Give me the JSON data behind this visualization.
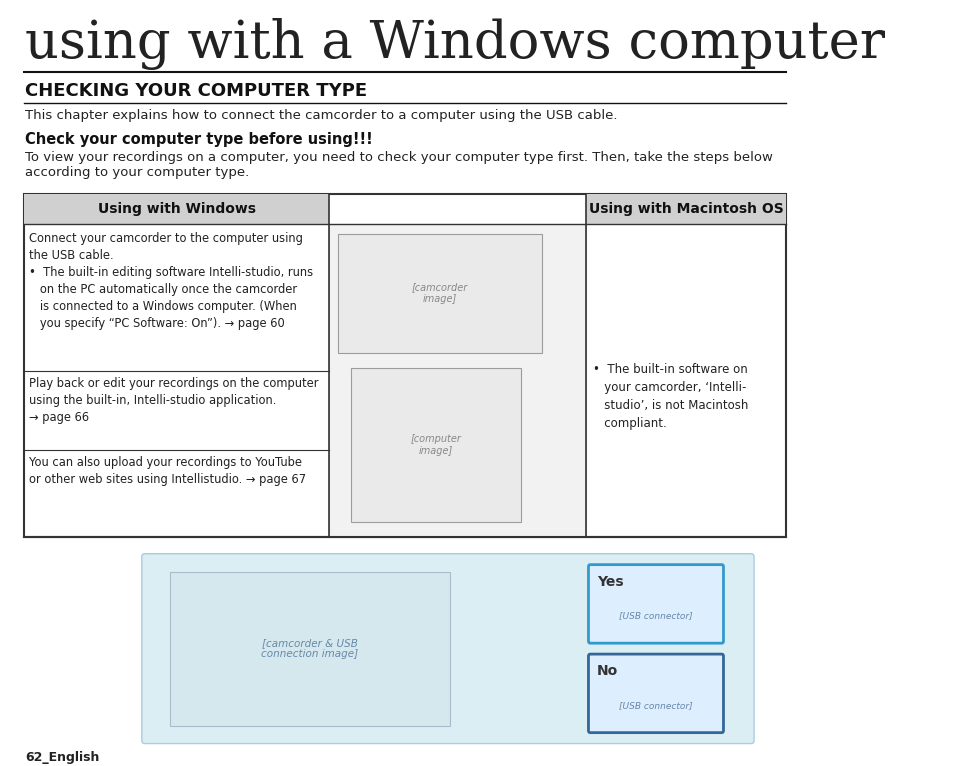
{
  "bg_color": "#ffffff",
  "page_width": 9.54,
  "page_height": 7.66,
  "title": "using with a Windows computer",
  "section_title": "CHECKING YOUR COMPUTER TYPE",
  "intro_text": "This chapter explains how to connect the camcorder to a computer using the USB cable.",
  "bold_heading": "Check your computer type before using!!!",
  "body_text": "To view your recordings on a computer, you need to check your computer type first. Then, take the steps below\naccording to your computer type.",
  "col1_header": "Using with Windows",
  "col2_header": "Using with Macintosh OS",
  "col1_row1": "Connect your camcorder to the computer using\nthe USB cable.\n•  The built-in editing software Intelli-studio, runs\n   on the PC automatically once the camcorder\n   is connected to a Windows computer. (When\n   you specify “PC Software: On”). → page 60",
  "col1_row2": "Play back or edit your recordings on the computer\nusing the built-in, Intelli-studio application.\n→ page 66",
  "col1_row3": "You can also upload your recordings to YouTube\nor other web sites using Intellistudio. → page 67",
  "col2_text": "•  The built-in software on\n   your camcorder, ‘Intelli-\n   studio’, is not Macintosh\n   compliant.",
  "footer_text": "62_English",
  "light_blue_bg": "#daeef3",
  "table_header_bg": "#e8e8e8",
  "table_border": "#333333",
  "yes_label": "Yes",
  "no_label": "No",
  "yes_box_color": "#3399cc",
  "no_box_color": "#336699"
}
